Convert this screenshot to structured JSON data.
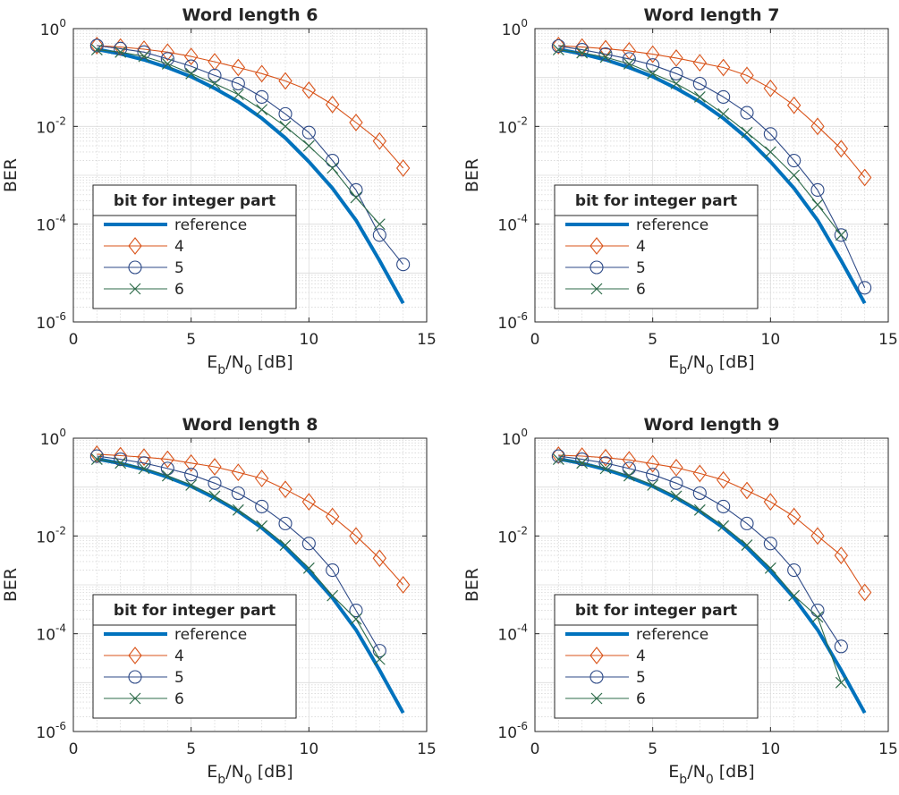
{
  "chart_data": [
    {
      "type": "line",
      "title": "Word length 6",
      "xlabel": "E_b/N_0 [dB]",
      "ylabel": "BER",
      "xlim": [
        0,
        15
      ],
      "xticks": [
        "0",
        "5",
        "10",
        "15"
      ],
      "ylim": [
        1e-06,
        1
      ],
      "yscale": "log",
      "ytick_labels": [
        {
          "base": "10",
          "exp": "0"
        },
        {
          "base": "10",
          "exp": "-2"
        },
        {
          "base": "10",
          "exp": "-4"
        },
        {
          "base": "10",
          "exp": "-6"
        }
      ],
      "grid": true,
      "legend": {
        "title": "bit for integer part",
        "placement": "bottom-left"
      },
      "series": [
        {
          "name": "reference",
          "color": "#0072BD",
          "marker": "none",
          "x": [
            1,
            2,
            3,
            4,
            5,
            6,
            7,
            8,
            9,
            10,
            11,
            12,
            13,
            14
          ],
          "y": [
            0.378,
            0.305,
            0.23,
            0.16,
            0.104,
            0.06,
            0.032,
            0.0146,
            0.0058,
            0.0019,
            0.00054,
            0.00012,
            1.8e-05,
            2.4e-06
          ]
        },
        {
          "name": "4",
          "color": "#D95319",
          "marker": "diamond",
          "x": [
            1,
            2,
            3,
            4,
            5,
            6,
            7,
            8,
            9,
            10,
            11,
            12,
            13,
            14
          ],
          "y": [
            0.45,
            0.42,
            0.38,
            0.33,
            0.27,
            0.21,
            0.16,
            0.12,
            0.085,
            0.055,
            0.028,
            0.012,
            0.005,
            0.0014
          ]
        },
        {
          "name": "5",
          "color": "#2E4A87",
          "marker": "circle",
          "x": [
            1,
            2,
            3,
            4,
            5,
            6,
            7,
            8,
            9,
            10,
            11,
            12,
            13,
            14
          ],
          "y": [
            0.45,
            0.39,
            0.33,
            0.24,
            0.17,
            0.11,
            0.075,
            0.04,
            0.018,
            0.0075,
            0.002,
            0.0005,
            6e-05,
            1.5e-05
          ]
        },
        {
          "name": "6",
          "color": "#2E6B4A",
          "marker": "x",
          "x": [
            1,
            2,
            3,
            4,
            5,
            6,
            7,
            8,
            9,
            10,
            11,
            12,
            13
          ],
          "y": [
            0.37,
            0.33,
            0.27,
            0.19,
            0.12,
            0.075,
            0.045,
            0.022,
            0.01,
            0.004,
            0.0014,
            0.00035,
            0.0001
          ]
        }
      ]
    },
    {
      "type": "line",
      "title": "Word length 7",
      "xlabel": "E_b/N_0 [dB]",
      "ylabel": "BER",
      "xlim": [
        0,
        15
      ],
      "xticks": [
        "0",
        "5",
        "10",
        "15"
      ],
      "ylim": [
        1e-06,
        1
      ],
      "yscale": "log",
      "ytick_labels": [
        {
          "base": "10",
          "exp": "0"
        },
        {
          "base": "10",
          "exp": "-2"
        },
        {
          "base": "10",
          "exp": "-4"
        },
        {
          "base": "10",
          "exp": "-6"
        }
      ],
      "grid": true,
      "legend": {
        "title": "bit for integer part",
        "placement": "bottom-left"
      },
      "series": [
        {
          "name": "reference",
          "color": "#0072BD",
          "marker": "none",
          "x": [
            1,
            2,
            3,
            4,
            5,
            6,
            7,
            8,
            9,
            10,
            11,
            12,
            13,
            14
          ],
          "y": [
            0.378,
            0.305,
            0.23,
            0.16,
            0.104,
            0.06,
            0.032,
            0.0146,
            0.0058,
            0.0019,
            0.00054,
            0.00012,
            1.8e-05,
            2.4e-06
          ]
        },
        {
          "name": "4",
          "color": "#D95319",
          "marker": "diamond",
          "x": [
            1,
            2,
            3,
            4,
            5,
            6,
            7,
            8,
            9,
            10,
            11,
            12,
            13,
            14
          ],
          "y": [
            0.45,
            0.42,
            0.39,
            0.35,
            0.3,
            0.25,
            0.2,
            0.16,
            0.11,
            0.06,
            0.027,
            0.01,
            0.0035,
            0.0009
          ]
        },
        {
          "name": "5",
          "color": "#2E4A87",
          "marker": "circle",
          "x": [
            1,
            2,
            3,
            4,
            5,
            6,
            7,
            8,
            9,
            10,
            11,
            12,
            13,
            14
          ],
          "y": [
            0.44,
            0.37,
            0.3,
            0.24,
            0.18,
            0.12,
            0.075,
            0.04,
            0.019,
            0.007,
            0.002,
            0.0005,
            6e-05,
            5e-06
          ]
        },
        {
          "name": "6",
          "color": "#2E6B4A",
          "marker": "x",
          "x": [
            1,
            2,
            3,
            4,
            5,
            6,
            7,
            8,
            9,
            10,
            11,
            12,
            13
          ],
          "y": [
            0.37,
            0.32,
            0.26,
            0.19,
            0.12,
            0.075,
            0.04,
            0.018,
            0.0075,
            0.003,
            0.001,
            0.00025,
            6e-05
          ]
        }
      ]
    },
    {
      "type": "line",
      "title": "Word length 8",
      "xlabel": "E_b/N_0 [dB]",
      "ylabel": "BER",
      "xlim": [
        0,
        15
      ],
      "xticks": [
        "0",
        "5",
        "10",
        "15"
      ],
      "ylim": [
        1e-06,
        1
      ],
      "yscale": "log",
      "ytick_labels": [
        {
          "base": "10",
          "exp": "0"
        },
        {
          "base": "10",
          "exp": "-2"
        },
        {
          "base": "10",
          "exp": "-4"
        },
        {
          "base": "10",
          "exp": "-6"
        }
      ],
      "grid": true,
      "legend": {
        "title": "bit for integer part",
        "placement": "bottom-left"
      },
      "series": [
        {
          "name": "reference",
          "color": "#0072BD",
          "marker": "none",
          "x": [
            1,
            2,
            3,
            4,
            5,
            6,
            7,
            8,
            9,
            10,
            11,
            12,
            13,
            14
          ],
          "y": [
            0.378,
            0.305,
            0.23,
            0.16,
            0.104,
            0.06,
            0.032,
            0.0146,
            0.0058,
            0.0019,
            0.00054,
            0.00012,
            1.8e-05,
            2.4e-06
          ]
        },
        {
          "name": "4",
          "color": "#D95319",
          "marker": "diamond",
          "x": [
            1,
            2,
            3,
            4,
            5,
            6,
            7,
            8,
            9,
            10,
            11,
            12,
            13,
            14
          ],
          "y": [
            0.47,
            0.44,
            0.41,
            0.37,
            0.31,
            0.26,
            0.2,
            0.15,
            0.09,
            0.05,
            0.025,
            0.01,
            0.0035,
            0.001
          ]
        },
        {
          "name": "5",
          "color": "#2E4A87",
          "marker": "circle",
          "x": [
            1,
            2,
            3,
            4,
            5,
            6,
            7,
            8,
            9,
            10,
            11,
            12,
            13
          ],
          "y": [
            0.43,
            0.37,
            0.31,
            0.24,
            0.18,
            0.12,
            0.075,
            0.04,
            0.018,
            0.007,
            0.002,
            0.0003,
            4.5e-05
          ]
        },
        {
          "name": "6",
          "color": "#2E6B4A",
          "marker": "x",
          "x": [
            1,
            2,
            3,
            4,
            5,
            6,
            7,
            8,
            9,
            10,
            11,
            12,
            13
          ],
          "y": [
            0.37,
            0.31,
            0.24,
            0.17,
            0.11,
            0.065,
            0.034,
            0.016,
            0.0065,
            0.0022,
            0.0006,
            0.0002,
            3e-05
          ]
        }
      ]
    },
    {
      "type": "line",
      "title": "Word length 9",
      "xlabel": "E_b/N_0 [dB]",
      "ylabel": "BER",
      "xlim": [
        0,
        15
      ],
      "xticks": [
        "0",
        "5",
        "10",
        "15"
      ],
      "ylim": [
        1e-06,
        1
      ],
      "yscale": "log",
      "ytick_labels": [
        {
          "base": "10",
          "exp": "0"
        },
        {
          "base": "10",
          "exp": "-2"
        },
        {
          "base": "10",
          "exp": "-4"
        },
        {
          "base": "10",
          "exp": "-6"
        }
      ],
      "grid": true,
      "legend": {
        "title": "bit for integer part",
        "placement": "bottom-left"
      },
      "series": [
        {
          "name": "reference",
          "color": "#0072BD",
          "marker": "none",
          "x": [
            1,
            2,
            3,
            4,
            5,
            6,
            7,
            8,
            9,
            10,
            11,
            12,
            13,
            14
          ],
          "y": [
            0.378,
            0.305,
            0.23,
            0.16,
            0.104,
            0.06,
            0.032,
            0.0146,
            0.0058,
            0.0019,
            0.00054,
            0.00012,
            1.8e-05,
            2.4e-06
          ]
        },
        {
          "name": "4",
          "color": "#D95319",
          "marker": "diamond",
          "x": [
            1,
            2,
            3,
            4,
            5,
            6,
            7,
            8,
            9,
            10,
            11,
            12,
            13,
            14
          ],
          "y": [
            0.45,
            0.43,
            0.4,
            0.36,
            0.3,
            0.25,
            0.19,
            0.14,
            0.085,
            0.05,
            0.025,
            0.01,
            0.004,
            0.0007
          ]
        },
        {
          "name": "5",
          "color": "#2E4A87",
          "marker": "circle",
          "x": [
            1,
            2,
            3,
            4,
            5,
            6,
            7,
            8,
            9,
            10,
            11,
            12,
            13
          ],
          "y": [
            0.43,
            0.37,
            0.31,
            0.24,
            0.18,
            0.12,
            0.075,
            0.04,
            0.018,
            0.007,
            0.002,
            0.0003,
            5.5e-05
          ]
        },
        {
          "name": "6",
          "color": "#2E6B4A",
          "marker": "x",
          "x": [
            1,
            2,
            3,
            4,
            5,
            6,
            7,
            8,
            9,
            10,
            11,
            12,
            13
          ],
          "y": [
            0.37,
            0.31,
            0.24,
            0.17,
            0.11,
            0.065,
            0.034,
            0.016,
            0.0065,
            0.0022,
            0.0006,
            0.00022,
            1e-05
          ]
        }
      ]
    }
  ]
}
